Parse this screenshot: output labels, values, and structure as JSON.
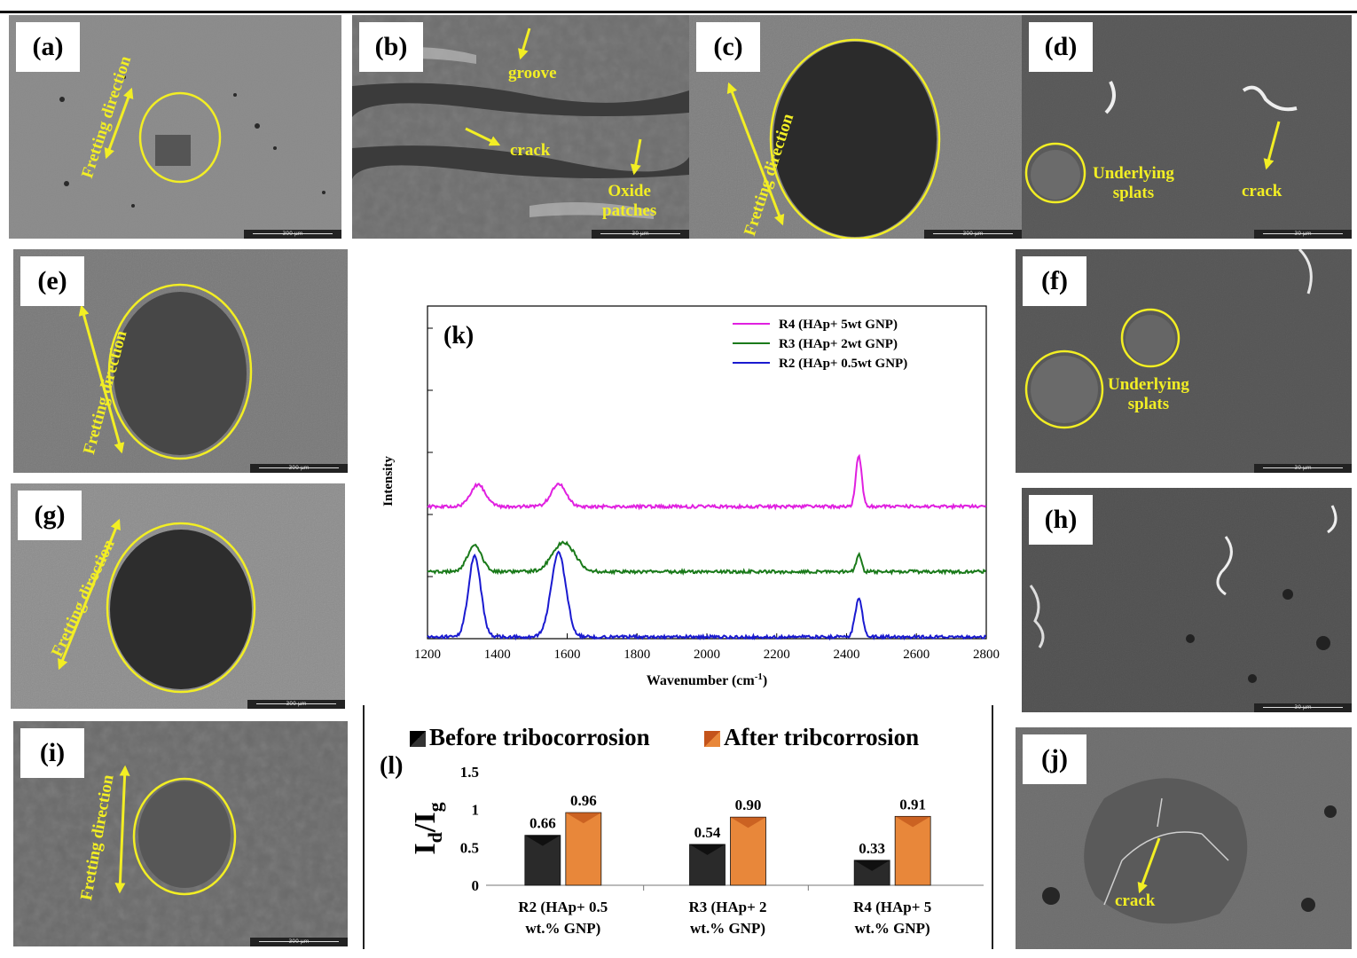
{
  "panels": {
    "a": {
      "label": "(a)",
      "fretting": "Fretting direction",
      "scale": "300 µm"
    },
    "b": {
      "label": "(b)",
      "groove": "groove",
      "crack": "crack",
      "oxide_line1": "Oxide",
      "oxide_line2": "patches",
      "scale": "30 µm"
    },
    "c": {
      "label": "(c)",
      "fretting": "Fretting direction",
      "scale": "300 µm"
    },
    "d": {
      "label": "(d)",
      "underlying_line1": "Underlying",
      "underlying_line2": "splats",
      "crack": "crack",
      "scale": "30 µm"
    },
    "e": {
      "label": "(e)",
      "fretting": "Fretting direction",
      "scale": "300 µm"
    },
    "f": {
      "label": "(f)",
      "underlying_line1": "Underlying",
      "underlying_line2": "splats",
      "scale": "30 µm"
    },
    "g": {
      "label": "(g)",
      "fretting": "Fretting direction",
      "scale": "300 µm"
    },
    "h": {
      "label": "(h)",
      "scale": "30 µm"
    },
    "i": {
      "label": "(i)",
      "fretting": "Fretting direction",
      "scale": "300 µm"
    },
    "j": {
      "label": "(j)",
      "crack": "crack"
    }
  },
  "chart_data": [
    {
      "id": "k",
      "type": "line",
      "panel_label": "(k)",
      "xlabel": "Wavenumber (cm",
      "xlabel_sup": "-1",
      "xlabel_tail": ")",
      "ylabel": "Intensity",
      "xlim": [
        1200,
        2800
      ],
      "xticks": [
        1200,
        1400,
        1600,
        1800,
        2000,
        2200,
        2400,
        2600,
        2800
      ],
      "legend": [
        {
          "name": "R4 (HAp+ 5wt GNP)",
          "color": "#e020e0"
        },
        {
          "name": "R3 (HAp+ 2wt GNP)",
          "color": "#1a7a1a"
        },
        {
          "name": "R2 (HAp+ 0.5wt GNP)",
          "color": "#1a1ad0"
        }
      ],
      "series": [
        {
          "name": "R4 (HAp+ 5wt GNP)",
          "color": "#e020e0",
          "offset": 2.0,
          "peaks": [
            {
              "x": 1345,
              "h": 0.35,
              "w": 30
            },
            {
              "x": 1575,
              "h": 0.36,
              "w": 30
            },
            {
              "x": 2435,
              "h": 0.82,
              "w": 12
            }
          ]
        },
        {
          "name": "R3 (HAp+ 2wt GNP)",
          "color": "#1a7a1a",
          "offset": 1.0,
          "peaks": [
            {
              "x": 1335,
              "h": 0.44,
              "w": 28
            },
            {
              "x": 1590,
              "h": 0.47,
              "w": 45
            },
            {
              "x": 2435,
              "h": 0.27,
              "w": 10
            }
          ]
        },
        {
          "name": "R2 (HAp+ 0.5wt GNP)",
          "color": "#1a1ad0",
          "offset": 0.0,
          "peaks": [
            {
              "x": 1335,
              "h": 1.3,
              "w": 25
            },
            {
              "x": 1575,
              "h": 1.35,
              "w": 30
            },
            {
              "x": 2435,
              "h": 0.6,
              "w": 15
            }
          ]
        }
      ]
    },
    {
      "id": "l",
      "type": "bar",
      "panel_label": "(l)",
      "ylabel": "I",
      "ylabel_sub1": "d",
      "ylabel_mid": "/I",
      "ylabel_sub2": "g",
      "ylim": [
        0,
        1.5
      ],
      "yticks": [
        "0",
        "0.5",
        "1",
        "1.5"
      ],
      "ytick_values": [
        0,
        0.5,
        1,
        1.5
      ],
      "categories": [
        [
          "R2 (HAp+ 0.5",
          "wt.% GNP)"
        ],
        [
          "R3 (HAp+ 2",
          "wt.% GNP)"
        ],
        [
          "R4 (HAp+ 5",
          "wt.% GNP)"
        ]
      ],
      "series": [
        {
          "name": "Before tribocorrosion",
          "color": "#000000",
          "values": [
            0.66,
            0.54,
            0.33
          ],
          "labels": [
            "0.66",
            "0.54",
            "0.33"
          ]
        },
        {
          "name": "After tribcorrosion",
          "color": "#e07a2e",
          "values": [
            0.96,
            0.9,
            0.91
          ],
          "labels": [
            "0.96",
            "0.90",
            "0.91"
          ]
        }
      ]
    }
  ]
}
